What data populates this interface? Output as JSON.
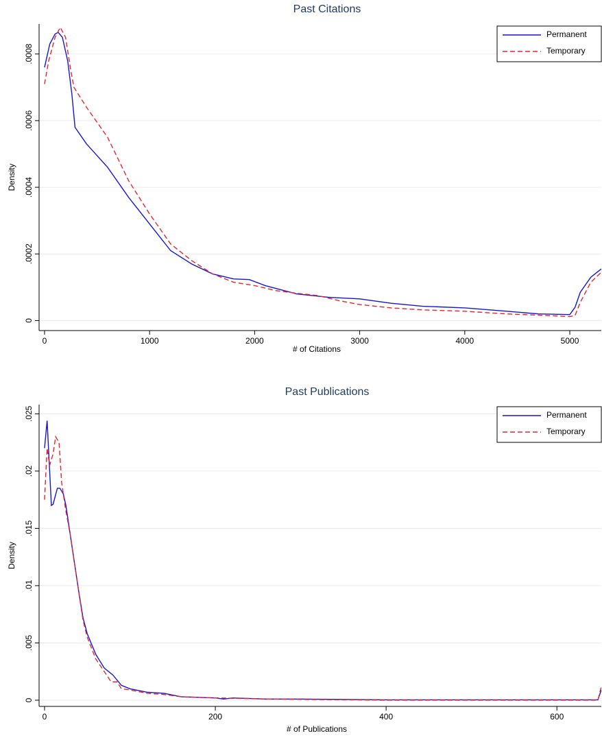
{
  "chart_data": [
    {
      "type": "line",
      "title": "Past Citations",
      "xlabel": "# of Citations",
      "ylabel": "Density",
      "xlim": [
        -52,
        5300
      ],
      "ylim": [
        -3e-05,
        0.00089
      ],
      "xticks": [
        0,
        1000,
        2000,
        3000,
        4000,
        5000
      ],
      "yticks": [
        0,
        {
          "value": 0.0002,
          "label": ".0002"
        },
        {
          "value": 0.0004,
          "label": ".0004"
        },
        {
          "value": 0.0006,
          "label": ".0006"
        },
        {
          "value": 0.0008,
          "label": ".0008"
        }
      ],
      "grid": true,
      "legend": "top-right",
      "series": [
        {
          "name": "Permanent",
          "color": "#1414d8",
          "dashed": false,
          "x": [
            0,
            50,
            100,
            130,
            170,
            220,
            260,
            290,
            400,
            600,
            800,
            1000,
            1200,
            1400,
            1600,
            1800,
            1950,
            2100,
            2400,
            2700,
            3000,
            3300,
            3600,
            4000,
            4400,
            4700,
            5000,
            5050,
            5100,
            5200,
            5300
          ],
          "values": [
            0.00076,
            0.00083,
            0.00086,
            0.000865,
            0.00085,
            0.00078,
            0.00068,
            0.00058,
            0.00053,
            0.00046,
            0.00037,
            0.00029,
            0.00021,
            0.00017,
            0.00014,
            0.000125,
            0.000123,
            0.000105,
            8e-05,
            7e-05,
            6.5e-05,
            5.2e-05,
            4.3e-05,
            3.8e-05,
            2.8e-05,
            2e-05,
            1.8e-05,
            4e-05,
            8.5e-05,
            0.00013,
            0.000155
          ]
        },
        {
          "name": "Temporary",
          "color": "#e8232a",
          "dashed": true,
          "x": [
            0,
            40,
            100,
            150,
            200,
            250,
            280,
            400,
            600,
            800,
            1000,
            1200,
            1400,
            1600,
            1800,
            2000,
            2200,
            2400,
            2600,
            2800,
            3000,
            3300,
            3600,
            4000,
            4400,
            4800,
            5000,
            5050,
            5100,
            5200,
            5300
          ],
          "values": [
            0.00071,
            0.00078,
            0.00085,
            0.00088,
            0.00085,
            0.00075,
            0.0007,
            0.00064,
            0.00055,
            0.00042,
            0.00032,
            0.00023,
            0.00018,
            0.00014,
            0.000115,
            0.000105,
            9e-05,
            8.2e-05,
            7.5e-05,
            6e-05,
            4.8e-05,
            3.8e-05,
            3.2e-05,
            2.8e-05,
            2e-05,
            1.5e-05,
            1.2e-05,
            1.5e-05,
            5.5e-05,
            0.000115,
            0.000145
          ]
        }
      ]
    },
    {
      "type": "line",
      "title": "Past Publications",
      "xlabel": "# of Publications",
      "ylabel": "Density",
      "xlim": [
        -6.4,
        652
      ],
      "ylim": [
        -0.00054,
        0.0258
      ],
      "xticks": [
        0,
        200,
        400,
        600
      ],
      "yticks": [
        0,
        {
          "value": 0.005,
          "label": ".005"
        },
        {
          "value": 0.01,
          "label": ".01"
        },
        {
          "value": 0.015,
          "label": ".015"
        },
        {
          "value": 0.02,
          "label": ".02"
        },
        {
          "value": 0.025,
          "label": ".025"
        }
      ],
      "grid": true,
      "legend": "top-right",
      "series": [
        {
          "name": "Permanent",
          "color": "#1414d8",
          "dashed": false,
          "x": [
            0,
            3,
            6,
            8,
            10,
            15,
            18,
            22,
            25,
            30,
            35,
            40,
            45,
            50,
            60,
            70,
            80,
            90,
            100,
            120,
            140,
            160,
            200,
            210,
            220,
            260,
            300,
            400,
            500,
            600,
            648,
            652
          ],
          "values": [
            0.022,
            0.0244,
            0.02,
            0.017,
            0.0171,
            0.0185,
            0.0185,
            0.018,
            0.017,
            0.0145,
            0.012,
            0.0095,
            0.0072,
            0.0058,
            0.004,
            0.0028,
            0.0022,
            0.0013,
            0.001,
            0.0007,
            0.0006,
            0.0003,
            0.0002,
            0.0001,
            0.0002,
            0.0001,
            0.0001,
            3e-05,
            3e-05,
            3e-05,
            3e-05,
            0.0009
          ]
        },
        {
          "name": "Temporary",
          "color": "#e8232a",
          "dashed": true,
          "x": [
            0,
            3,
            6,
            10,
            13,
            17,
            20,
            25,
            30,
            35,
            40,
            45,
            50,
            60,
            70,
            78,
            85,
            90,
            100,
            120,
            140,
            160,
            200,
            260,
            400,
            600,
            648,
            652
          ],
          "values": [
            0.0175,
            0.022,
            0.0205,
            0.0215,
            0.023,
            0.0225,
            0.019,
            0.0165,
            0.0145,
            0.012,
            0.0095,
            0.007,
            0.0055,
            0.0036,
            0.0025,
            0.0016,
            0.0016,
            0.001,
            0.0009,
            0.0006,
            0.0005,
            0.0003,
            0.0002,
            0.0001,
            0,
            0,
            0,
            0.0012
          ]
        }
      ]
    }
  ]
}
